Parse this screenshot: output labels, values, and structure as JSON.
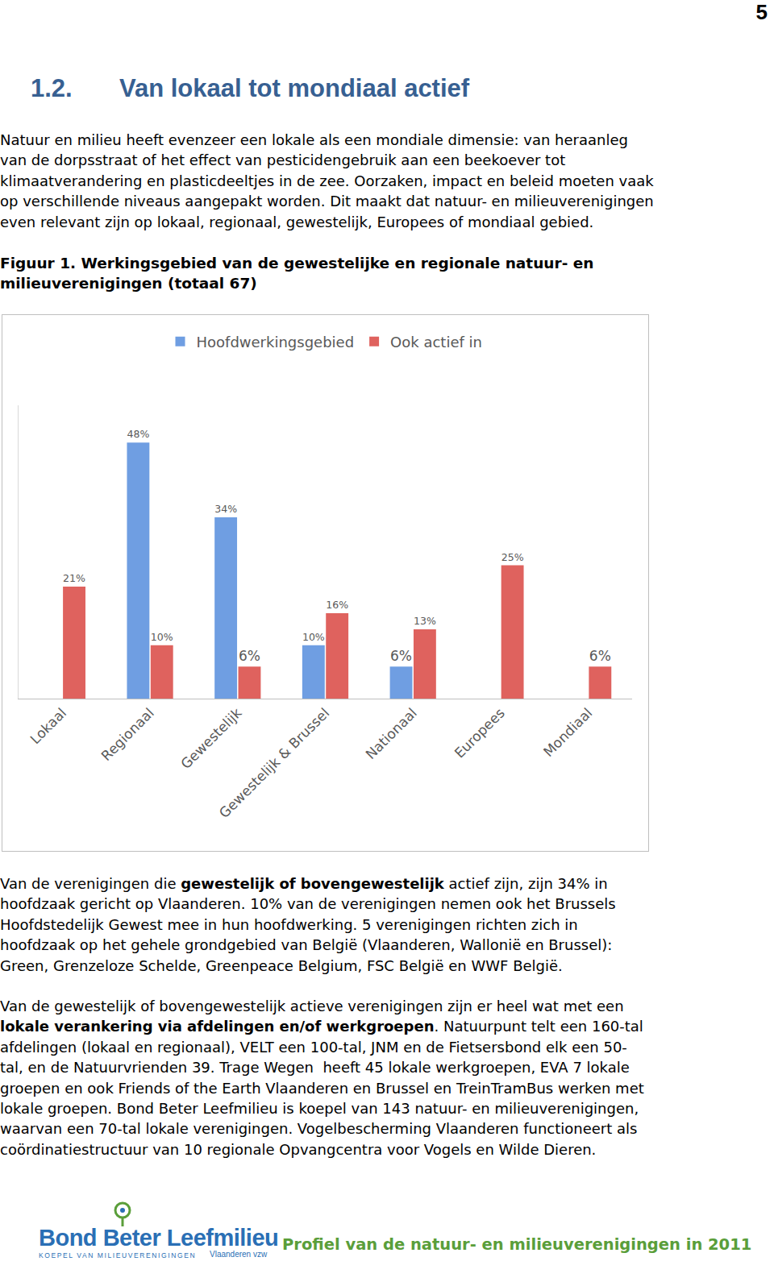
{
  "page_number": "5",
  "heading": {
    "number": "1.2.",
    "title": "Van lokaal tot mondiaal actief"
  },
  "intro": [
    "Natuur en milieu heeft evenzeer een lokale als een mondiale dimensie: van heraanleg",
    "van de dorpsstraat of het effect van pesticidengebruik aan een beekoever tot",
    "klimaatverandering en plasticdeeltjes in de zee. Oorzaken, impact en beleid moeten vaak",
    "op verschillende niveaus aangepakt worden. Dit maakt dat natuur- en milieuverenigingen",
    "even relevant zijn op lokaal, regionaal, gewestelijk, Europees of mondiaal gebied."
  ],
  "figure": {
    "caption": [
      "Figuur 1. Werkingsgebied van de gewestelijke en regionale natuur- en",
      "milieuverenigingen (totaal 67)"
    ]
  },
  "chart_data": {
    "type": "bar",
    "categories": [
      "Lokaal",
      "Regionaal",
      "Gewestelijk",
      "Gewestelijk & Brussel",
      "Nationaal",
      "Europees",
      "Mondiaal"
    ],
    "series": [
      {
        "name": "Hoofdwerkingsgebied",
        "color": "#6f9ee2",
        "values": [
          null,
          48,
          34,
          10,
          6,
          null,
          null
        ],
        "value_labels": [
          null,
          "48%",
          "34%",
          "10%",
          "6%",
          null,
          null
        ]
      },
      {
        "name": "Ook actief in",
        "color": "#df625e",
        "values": [
          21,
          10,
          6,
          16,
          13,
          25,
          6
        ],
        "value_labels": [
          "21%",
          "10%",
          "6%",
          "16%",
          "13%",
          "25%",
          "6%"
        ]
      }
    ],
    "ylim": [
      0,
      55
    ],
    "yticks": [],
    "grid": false,
    "legend": "top",
    "data_labels": true,
    "tick_labels": "x"
  },
  "body": [
    [
      [
        "Van de verenigingen die ",
        {
          "bold": "gewestelijk of bovengewestelijk"
        },
        " actief zijn, zijn 34% in"
      ],
      [
        "hoofdzaak gericht op Vlaanderen. 10% van de verenigingen nemen ook het Brussels"
      ],
      [
        "Hoofdstedelijk Gewest mee in hun hoofdwerking. 5 verenigingen richten zich in"
      ],
      [
        "hoofdzaak op het gehele grondgebied van België (Vlaanderen, Wallonië en Brussel):"
      ],
      [
        "Green, Grenzeloze Schelde, Greenpeace Belgium, FSC België en WWF België."
      ]
    ],
    [
      [
        "Van de gewestelijk of bovengewestelijk actieve verenigingen zijn er heel wat met een"
      ],
      [
        {
          "bold": "lokale verankering via afdelingen en/of werkgroepen"
        },
        ". Natuurpunt telt een 160-tal"
      ],
      [
        "afdelingen (lokaal en regionaal), VELT een 100-tal, JNM en de Fietsersbond elk een 50-"
      ],
      [
        "tal, en de Natuurvrienden 39. Trage Wegen  heeft 45 lokale werkgroepen, EVA 7 lokale"
      ],
      [
        "groepen en ook Friends of the Earth Vlaanderen en Brussel en TreinTramBus werken met"
      ],
      [
        "lokale groepen. Bond Beter Leefmilieu is koepel van 143 natuur- en milieuverenigingen,"
      ],
      [
        "waarvan een 70-tal lokale verenigingen. Vogelbescherming Vlaanderen functioneert als"
      ],
      [
        "coördinatiestructuur van 10 regionale Opvangcentra voor Vogels en Wilde Dieren."
      ]
    ]
  ],
  "footer": {
    "logo": "Bond Beter Leefmilieu",
    "logo_subtitle": "KOEPEL VAN MILIEUVERENIGINGEN",
    "logo_region": "Vlaanderen vzw",
    "text": "Profiel van de natuur- en milieuverenigingen in 2011"
  }
}
